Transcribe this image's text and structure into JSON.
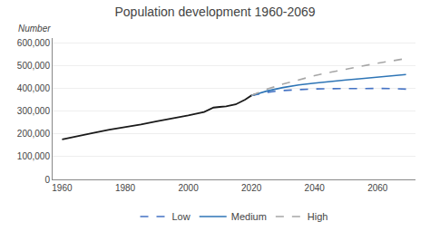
{
  "chart_data": {
    "type": "line",
    "title": "Population development 1960-2069",
    "ylabel": "Number",
    "xlim": [
      1957,
      2072
    ],
    "xticks": [
      1960,
      1980,
      2000,
      2020,
      2040,
      2060
    ],
    "ylim": [
      0,
      620000
    ],
    "yticks": [
      0,
      {
        "value": 100000,
        "label": "100,000"
      },
      {
        "value": 200000,
        "label": "200,000"
      },
      {
        "value": 300000,
        "label": "300,000"
      },
      {
        "value": 400000,
        "label": "400,000"
      },
      {
        "value": 500000,
        "label": "500,000"
      },
      {
        "value": 600000,
        "label": "600,000"
      }
    ],
    "grid": "y",
    "legend": "bottom",
    "series": [
      {
        "color": "#1a1a1a",
        "line_style": "solid",
        "x": [
          1960,
          1965,
          1970,
          1975,
          1980,
          1985,
          1990,
          1995,
          2000,
          2005,
          2008,
          2010,
          2012,
          2015,
          2018,
          2020,
          2022
        ],
        "values": [
          175000,
          191000,
          204000,
          218000,
          228000,
          241000,
          255000,
          267000,
          281000,
          296000,
          315000,
          318000,
          320000,
          329000,
          350000,
          368000,
          376000
        ]
      },
      {
        "name": "Low",
        "color": "#4472c4",
        "line_style": "dashed",
        "x": [
          2020,
          2025,
          2030,
          2035,
          2040,
          2045,
          2050,
          2055,
          2060,
          2065,
          2069
        ],
        "values": [
          368000,
          382000,
          390000,
          394000,
          397000,
          398000,
          399000,
          399000,
          399000,
          398000,
          396000
        ]
      },
      {
        "name": "Medium",
        "color": "#2e75b6",
        "line_style": "solid",
        "x": [
          2020,
          2025,
          2030,
          2035,
          2040,
          2045,
          2050,
          2055,
          2060,
          2065,
          2069
        ],
        "values": [
          368000,
          388000,
          403000,
          414000,
          422000,
          430000,
          436000,
          442000,
          448000,
          454000,
          460000
        ]
      },
      {
        "name": "High",
        "color": "#a6a6a6",
        "line_style": "dashed",
        "x": [
          2020,
          2025,
          2030,
          2035,
          2040,
          2045,
          2050,
          2055,
          2060,
          2065,
          2069
        ],
        "values": [
          368000,
          396000,
          418000,
          438000,
          455000,
          470000,
          484000,
          497000,
          510000,
          521000,
          530000
        ]
      }
    ]
  }
}
